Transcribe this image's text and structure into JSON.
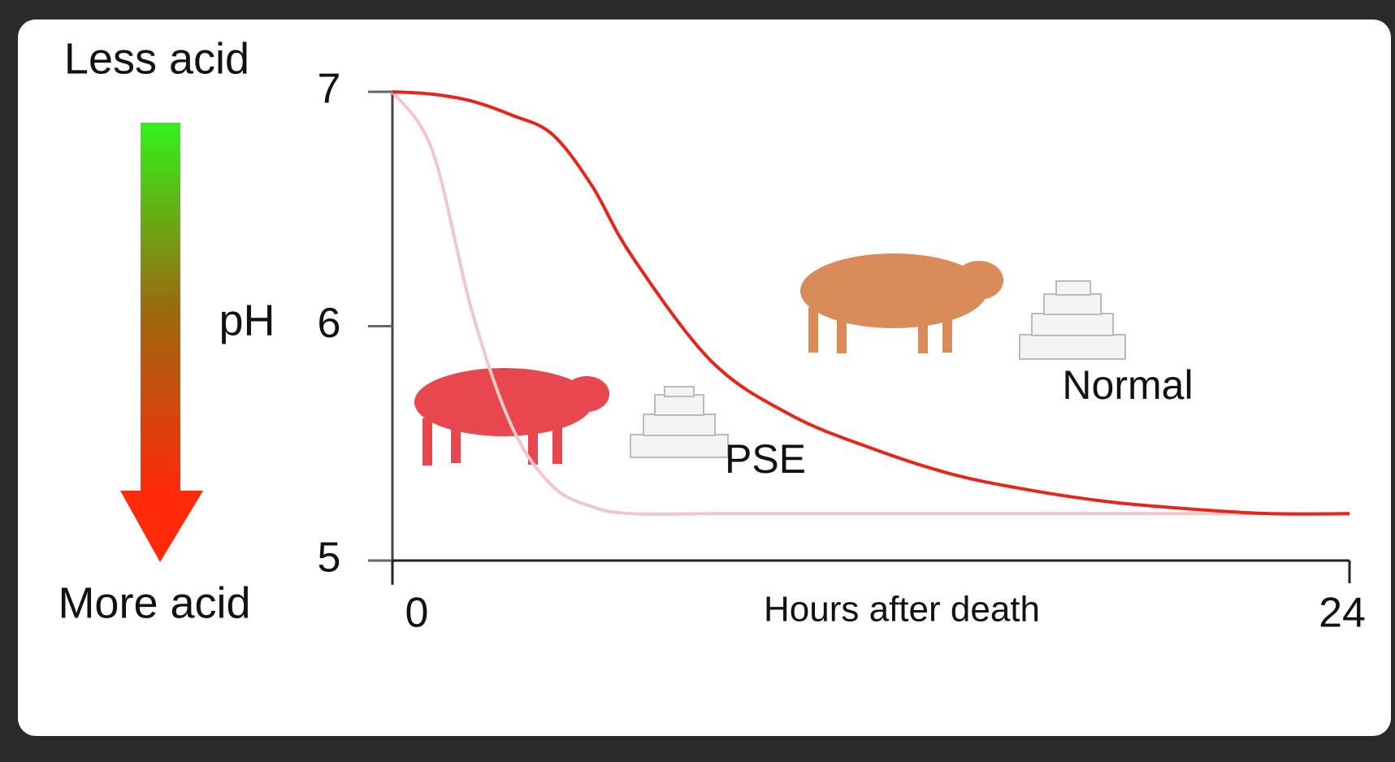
{
  "chart_data": {
    "type": "line",
    "y_label_top": "Less acid",
    "y_label_bottom": "More acid",
    "y_label": "pH",
    "x_label": "Hours after death",
    "x": [
      0,
      1,
      2,
      3,
      4,
      5,
      6,
      8,
      10,
      12,
      14,
      16,
      18,
      20,
      22,
      24
    ],
    "series": [
      {
        "name": "Normal",
        "color": "#e8251a",
        "values": [
          7,
          6.99,
          6.96,
          6.9,
          6.82,
          6.6,
          6.3,
          5.85,
          5.62,
          5.48,
          5.37,
          5.3,
          5.25,
          5.22,
          5.2,
          5.2
        ]
      },
      {
        "name": "PSE",
        "color": "#f0c8c8",
        "values": [
          7,
          6.75,
          6.06,
          5.57,
          5.32,
          5.23,
          5.2,
          5.2,
          5.2,
          5.2,
          5.2,
          5.2,
          5.2,
          5.2,
          5.2,
          5.2
        ]
      }
    ],
    "xlim": [
      0,
      24
    ],
    "xticks": [
      0,
      24
    ],
    "ylim": [
      5,
      7
    ],
    "yticks": [
      5,
      6,
      7
    ],
    "grid": false
  }
}
